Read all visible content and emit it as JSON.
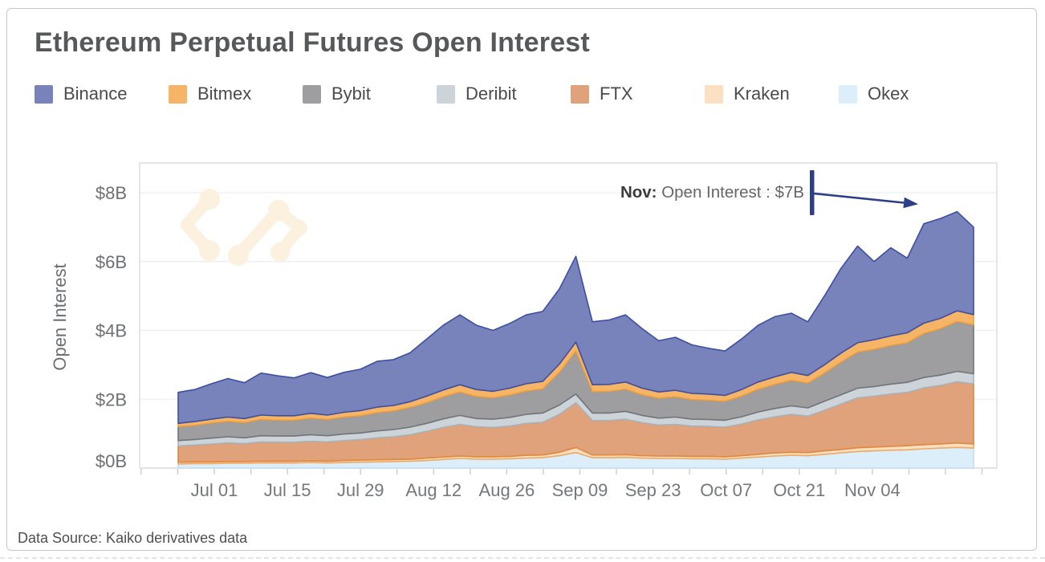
{
  "title": "Ethereum Perpetual Futures Open Interest",
  "footer": "Data Source: Kaiko derivatives data",
  "annotation": {
    "label": "Nov:",
    "text": " Open Interest : $7B"
  },
  "y_axis": {
    "title": "Open Interest",
    "ticks": [
      "$0B",
      "$2B",
      "$4B",
      "$6B",
      "$8B"
    ]
  },
  "x_axis": {
    "ticks": [
      "Jul 01",
      "Jul 15",
      "Jul 29",
      "Aug 12",
      "Aug 26",
      "Sep 09",
      "Sep 23",
      "Oct 07",
      "Oct 21",
      "Nov 04"
    ]
  },
  "colors": {
    "accent_navy": "#2c3f87",
    "gridline": "#ededee",
    "axis_line": "#c8c8c8",
    "watermark": "#fcf0de"
  },
  "chart_data": {
    "type": "area",
    "stacked": true,
    "title": "Ethereum Perpetual Futures Open Interest",
    "ylabel": "Open Interest",
    "unit": "billion USD",
    "ylim": [
      0,
      8.9
    ],
    "y_ticks_billions": [
      0,
      2,
      4,
      6,
      8
    ],
    "grid": "horizontal",
    "legend_position": "top",
    "x": [
      "Jun 24",
      "Jun 27",
      "Jun 30",
      "Jul 03",
      "Jul 06",
      "Jul 09",
      "Jul 12",
      "Jul 15",
      "Jul 18",
      "Jul 21",
      "Jul 24",
      "Jul 27",
      "Jul 30",
      "Aug 02",
      "Aug 05",
      "Aug 08",
      "Aug 11",
      "Aug 14",
      "Aug 17",
      "Aug 20",
      "Aug 23",
      "Aug 26",
      "Aug 29",
      "Sep 01",
      "Sep 04",
      "Sep 07",
      "Sep 10",
      "Sep 13",
      "Sep 16",
      "Sep 19",
      "Sep 22",
      "Sep 25",
      "Sep 28",
      "Oct 01",
      "Oct 04",
      "Oct 07",
      "Oct 10",
      "Oct 13",
      "Oct 16",
      "Oct 19",
      "Oct 22",
      "Oct 25",
      "Oct 28",
      "Oct 31",
      "Nov 03",
      "Nov 06",
      "Nov 09",
      "Nov 12",
      "Nov 15"
    ],
    "series": [
      {
        "id": "okex",
        "name": "Okex",
        "color": "#ddeefb",
        "border": "#c2ddf2",
        "values": [
          0.12,
          0.13,
          0.13,
          0.14,
          0.14,
          0.15,
          0.15,
          0.15,
          0.16,
          0.15,
          0.16,
          0.17,
          0.18,
          0.19,
          0.2,
          0.22,
          0.25,
          0.28,
          0.26,
          0.26,
          0.27,
          0.29,
          0.3,
          0.36,
          0.45,
          0.3,
          0.3,
          0.31,
          0.29,
          0.28,
          0.28,
          0.27,
          0.27,
          0.26,
          0.29,
          0.32,
          0.35,
          0.37,
          0.36,
          0.4,
          0.44,
          0.48,
          0.5,
          0.52,
          0.53,
          0.56,
          0.58,
          0.6,
          0.58
        ]
      },
      {
        "id": "kraken",
        "name": "Kraken",
        "color": "#fbe0c3",
        "border": "#f2a95f",
        "values": [
          0.05,
          0.05,
          0.05,
          0.05,
          0.05,
          0.05,
          0.05,
          0.05,
          0.05,
          0.05,
          0.06,
          0.06,
          0.06,
          0.06,
          0.06,
          0.07,
          0.07,
          0.07,
          0.07,
          0.07,
          0.07,
          0.08,
          0.08,
          0.1,
          0.15,
          0.08,
          0.08,
          0.08,
          0.07,
          0.07,
          0.07,
          0.07,
          0.07,
          0.07,
          0.07,
          0.08,
          0.09,
          0.09,
          0.09,
          0.1,
          0.1,
          0.11,
          0.11,
          0.11,
          0.12,
          0.12,
          0.12,
          0.13,
          0.12
        ]
      },
      {
        "id": "ftx",
        "name": "FTX",
        "color": "#dfa27a",
        "border": "#e2873e",
        "values": [
          0.47,
          0.49,
          0.52,
          0.54,
          0.52,
          0.56,
          0.55,
          0.55,
          0.57,
          0.56,
          0.58,
          0.6,
          0.64,
          0.66,
          0.71,
          0.78,
          0.86,
          0.92,
          0.87,
          0.85,
          0.88,
          0.93,
          0.95,
          1.1,
          1.3,
          1.0,
          1.0,
          1.03,
          0.96,
          0.9,
          0.92,
          0.88,
          0.87,
          0.86,
          0.92,
          1.0,
          1.05,
          1.1,
          1.06,
          1.18,
          1.32,
          1.45,
          1.48,
          1.52,
          1.55,
          1.65,
          1.7,
          1.78,
          1.75
        ]
      },
      {
        "id": "deribit",
        "name": "Deribit",
        "color": "#ccd4da",
        "border": "#a7b3bc",
        "values": [
          0.16,
          0.16,
          0.17,
          0.18,
          0.17,
          0.18,
          0.18,
          0.18,
          0.19,
          0.18,
          0.19,
          0.19,
          0.2,
          0.21,
          0.22,
          0.23,
          0.25,
          0.26,
          0.24,
          0.24,
          0.25,
          0.26,
          0.27,
          0.27,
          0.25,
          0.22,
          0.22,
          0.23,
          0.21,
          0.2,
          0.21,
          0.2,
          0.2,
          0.2,
          0.21,
          0.23,
          0.24,
          0.25,
          0.24,
          0.26,
          0.27,
          0.28,
          0.28,
          0.29,
          0.29,
          0.3,
          0.3,
          0.3,
          0.29
        ]
      },
      {
        "id": "bybit",
        "name": "Bybit",
        "color": "#9e9ea1",
        "border": "#727477",
        "values": [
          0.4,
          0.41,
          0.44,
          0.45,
          0.44,
          0.47,
          0.46,
          0.46,
          0.48,
          0.47,
          0.49,
          0.5,
          0.53,
          0.54,
          0.57,
          0.6,
          0.64,
          0.68,
          0.64,
          0.62,
          0.65,
          0.68,
          0.7,
          0.95,
          1.25,
          0.62,
          0.63,
          0.64,
          0.6,
          0.58,
          0.59,
          0.57,
          0.56,
          0.55,
          0.6,
          0.66,
          0.7,
          0.74,
          0.72,
          0.82,
          0.95,
          1.05,
          1.08,
          1.12,
          1.15,
          1.28,
          1.35,
          1.45,
          1.42
        ]
      },
      {
        "id": "bitmex",
        "name": "Bitmex",
        "color": "#f5b466",
        "border": "#ee9e3d",
        "values": [
          0.1,
          0.11,
          0.11,
          0.12,
          0.12,
          0.13,
          0.13,
          0.13,
          0.14,
          0.13,
          0.14,
          0.15,
          0.16,
          0.16,
          0.17,
          0.19,
          0.2,
          0.21,
          0.2,
          0.19,
          0.2,
          0.21,
          0.22,
          0.24,
          0.26,
          0.2,
          0.2,
          0.21,
          0.19,
          0.18,
          0.19,
          0.18,
          0.18,
          0.17,
          0.19,
          0.21,
          0.22,
          0.23,
          0.22,
          0.24,
          0.26,
          0.27,
          0.28,
          0.28,
          0.29,
          0.3,
          0.3,
          0.31,
          0.3
        ]
      },
      {
        "id": "binance",
        "name": "Binance",
        "color": "#7983bb",
        "border": "#3d4fa0",
        "values": [
          0.9,
          0.93,
          1.03,
          1.12,
          1.04,
          1.22,
          1.16,
          1.1,
          1.18,
          1.09,
          1.16,
          1.2,
          1.33,
          1.33,
          1.42,
          1.66,
          1.88,
          2.03,
          1.87,
          1.77,
          1.88,
          2.0,
          2.03,
          2.18,
          2.49,
          1.83,
          1.87,
          1.95,
          1.73,
          1.49,
          1.54,
          1.41,
          1.33,
          1.29,
          1.47,
          1.65,
          1.75,
          1.72,
          1.56,
          2.0,
          2.46,
          2.81,
          2.27,
          2.56,
          2.17,
          2.89,
          2.9,
          2.88,
          2.54
        ]
      }
    ],
    "legend_order": [
      "Binance",
      "Bitmex",
      "Bybit",
      "Deribit",
      "FTX",
      "Kraken",
      "Okex"
    ],
    "annotation": {
      "text": "Nov: Open Interest : $7B",
      "points_to": "early-November peak ≈ $7B"
    }
  }
}
